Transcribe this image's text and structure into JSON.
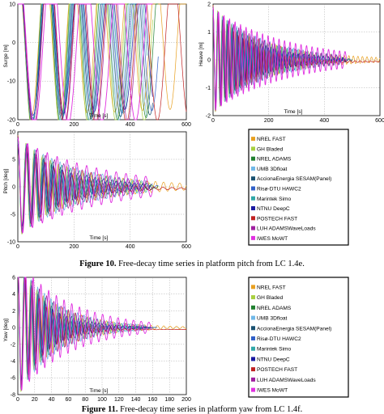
{
  "legend_entries": [
    "NREL FAST",
    "GH Bladed",
    "NREL ADAMS",
    "UMB 3Dfloat",
    "AccionaEnergia SESAM(Panel)",
    "Risø-DTU HAWC2",
    "Marintek Simo",
    "NTNU DeepC",
    "POSTECH FAST",
    "LUH ADAMSWaveLoads",
    "IWES MoWT"
  ],
  "series_colors": [
    "#e8a020",
    "#a8d040",
    "#208030",
    "#70b8e8",
    "#185070",
    "#3060c8",
    "#30a8a8",
    "#1818a0",
    "#c02020",
    "#a020a0",
    "#e030e0"
  ],
  "caption_10": {
    "label": "Figure 10.",
    "text": "Free-decay time series in platform pitch from LC 1.4e."
  },
  "caption_11": {
    "label": "Figure 11.",
    "text": "Free-decay time series in platform yaw from LC 1.4f."
  },
  "chart_data": [
    {
      "type": "line",
      "title": "",
      "xlabel": "Time [s]",
      "ylabel": "Surge [m]",
      "xlim": [
        0,
        600
      ],
      "ylim": [
        -20,
        10
      ],
      "xticks": [
        0,
        200,
        400,
        600
      ],
      "yticks": [
        -20,
        -10,
        0,
        10
      ],
      "decay": {
        "A0": 21,
        "period": 106,
        "damping": 0.004,
        "duration": 500
      }
    },
    {
      "type": "line",
      "title": "",
      "xlabel": "Time [s]",
      "ylabel": "Heave [m]",
      "xlim": [
        0,
        600
      ],
      "ylim": [
        -2,
        2
      ],
      "xticks": [
        0,
        200,
        400,
        600
      ],
      "yticks": [
        -2,
        -1,
        0,
        1,
        2
      ],
      "decay": {
        "A0": 1.8,
        "period": 17.5,
        "damping": 0.018,
        "duration": 500
      }
    },
    {
      "type": "line",
      "title": "",
      "xlabel": "Time [s]",
      "ylabel": "Pitch [deg]",
      "xlim": [
        0,
        600
      ],
      "ylim": [
        -10,
        10
      ],
      "xticks": [
        0,
        200,
        400,
        600
      ],
      "yticks": [
        -10,
        -5,
        0,
        5,
        10
      ],
      "decay": {
        "A0": 8.6,
        "period": 31,
        "damping": 0.028,
        "duration": 500
      }
    },
    {
      "type": "line",
      "title": "",
      "xlabel": "Time [s]",
      "ylabel": "Yaw [deg]",
      "xlim": [
        0,
        200
      ],
      "ylim": [
        -8,
        6
      ],
      "xticks": [
        0,
        20,
        40,
        60,
        80,
        100,
        120,
        140,
        160,
        180,
        200
      ],
      "yticks": [
        -8,
        -6,
        -4,
        -2,
        0,
        2,
        4,
        6
      ],
      "decay": {
        "A0": 7.8,
        "period": 8.1,
        "damping": 0.035,
        "duration": 165
      }
    }
  ]
}
